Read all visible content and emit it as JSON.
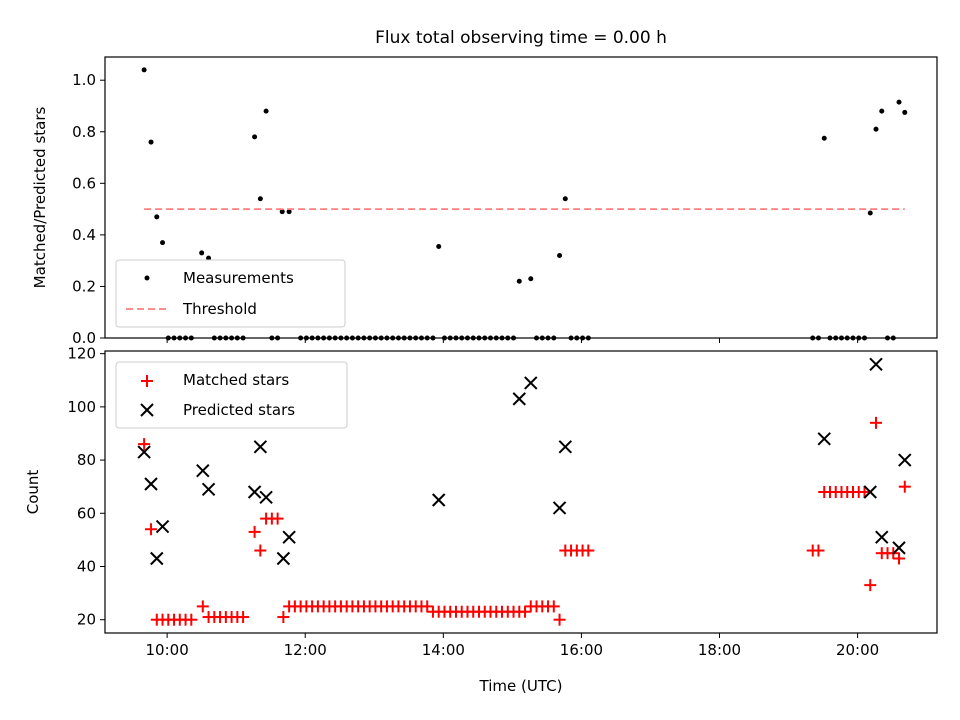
{
  "chart_data": [
    {
      "type": "scatter",
      "title": "Flux total observing time = 0.00 h",
      "xlabel": "",
      "ylabel": "Matched/Predicted stars",
      "xlim_hours": [
        9.1,
        21.15
      ],
      "ylim": [
        0,
        1.09
      ],
      "x_ticks": [
        "10:00",
        "12:00",
        "14:00",
        "16:00",
        "18:00",
        "20:00"
      ],
      "x_tick_hours": [
        10,
        12,
        14,
        16,
        18,
        20
      ],
      "y_ticks": [
        "0.0",
        "0.2",
        "0.4",
        "0.6",
        "0.8",
        "1.0"
      ],
      "y_tick_values": [
        0,
        0.2,
        0.4,
        0.6,
        0.8,
        1.0
      ],
      "grid": false,
      "legend_position": "lower-left",
      "series": [
        {
          "name": "Measurements",
          "marker": "dot",
          "color": "#000000",
          "points": [
            [
              "09:40",
              1.04
            ],
            [
              "09:46",
              0.76
            ],
            [
              "09:51",
              0.47
            ],
            [
              "09:56",
              0.37
            ],
            [
              "10:30",
              0.33
            ],
            [
              "10:36",
              0.31
            ],
            [
              "11:16",
              0.78
            ],
            [
              "11:21",
              0.54
            ],
            [
              "11:26",
              0.88
            ],
            [
              "11:40",
              0.49
            ],
            [
              "11:46",
              0.49
            ],
            [
              "13:56",
              0.355
            ],
            [
              "15:06",
              0.22
            ],
            [
              "15:16",
              0.23
            ],
            [
              "15:41",
              0.32
            ],
            [
              "15:46",
              0.54
            ],
            [
              "19:31",
              0.775
            ],
            [
              "20:11",
              0.485
            ],
            [
              "20:16",
              0.81
            ],
            [
              "20:21",
              0.88
            ],
            [
              "20:36",
              0.915
            ],
            [
              "20:41",
              0.875
            ]
          ],
          "zero_points": [
            "10:01",
            "10:06",
            "10:11",
            "10:16",
            "10:21",
            "10:41",
            "10:46",
            "10:51",
            "10:56",
            "11:01",
            "11:06",
            "11:31",
            "11:36",
            "11:56",
            "12:01",
            "12:06",
            "12:11",
            "12:16",
            "12:21",
            "12:26",
            "12:31",
            "12:36",
            "12:41",
            "12:46",
            "12:51",
            "12:56",
            "13:01",
            "13:06",
            "13:11",
            "13:16",
            "13:21",
            "13:26",
            "13:31",
            "13:36",
            "13:41",
            "13:46",
            "13:51",
            "14:01",
            "14:06",
            "14:11",
            "14:16",
            "14:21",
            "14:26",
            "14:31",
            "14:36",
            "14:41",
            "14:46",
            "14:51",
            "14:56",
            "15:01",
            "15:21",
            "15:26",
            "15:31",
            "15:36",
            "15:51",
            "15:56",
            "16:01",
            "16:06",
            "19:21",
            "19:26",
            "19:36",
            "19:41",
            "19:46",
            "19:51",
            "19:56",
            "20:01",
            "20:06",
            "20:26",
            "20:31"
          ]
        },
        {
          "name": "Threshold",
          "marker": "dashed-line",
          "color": "#ff7f7f",
          "y": 0.5,
          "x_range": [
            "09:40",
            "20:41"
          ]
        }
      ]
    },
    {
      "type": "scatter",
      "title": "",
      "xlabel": "Time (UTC)",
      "ylabel": "Count",
      "xlim_hours": [
        9.1,
        21.15
      ],
      "ylim": [
        15,
        121
      ],
      "x_ticks": [
        "10:00",
        "12:00",
        "14:00",
        "16:00",
        "18:00",
        "20:00"
      ],
      "x_tick_hours": [
        10,
        12,
        14,
        16,
        18,
        20
      ],
      "y_ticks": [
        "20",
        "40",
        "60",
        "80",
        "100",
        "120"
      ],
      "y_tick_values": [
        20,
        40,
        60,
        80,
        100,
        120
      ],
      "grid": false,
      "legend_position": "upper-left",
      "series": [
        {
          "name": "Matched stars",
          "marker": "plus",
          "color": "#ff0000",
          "points": [
            [
              "09:40",
              86
            ],
            [
              "09:46",
              54
            ],
            [
              "09:51",
              20
            ],
            [
              "09:56",
              20
            ],
            [
              "10:01",
              20
            ],
            [
              "10:06",
              20
            ],
            [
              "10:11",
              20
            ],
            [
              "10:16",
              20
            ],
            [
              "10:21",
              20
            ],
            [
              "10:31",
              25
            ],
            [
              "10:36",
              21
            ],
            [
              "10:41",
              21
            ],
            [
              "10:46",
              21
            ],
            [
              "10:51",
              21
            ],
            [
              "10:56",
              21
            ],
            [
              "11:01",
              21
            ],
            [
              "11:06",
              21
            ],
            [
              "11:16",
              53
            ],
            [
              "11:21",
              46
            ],
            [
              "11:26",
              58
            ],
            [
              "11:31",
              58
            ],
            [
              "11:36",
              58
            ],
            [
              "11:41",
              21
            ],
            [
              "11:46",
              25
            ],
            [
              "11:51",
              25
            ],
            [
              "11:56",
              25
            ],
            [
              "12:01",
              25
            ],
            [
              "12:06",
              25
            ],
            [
              "12:11",
              25
            ],
            [
              "12:16",
              25
            ],
            [
              "12:21",
              25
            ],
            [
              "12:26",
              25
            ],
            [
              "12:31",
              25
            ],
            [
              "12:36",
              25
            ],
            [
              "12:41",
              25
            ],
            [
              "12:46",
              25
            ],
            [
              "12:51",
              25
            ],
            [
              "12:56",
              25
            ],
            [
              "13:01",
              25
            ],
            [
              "13:06",
              25
            ],
            [
              "13:11",
              25
            ],
            [
              "13:16",
              25
            ],
            [
              "13:21",
              25
            ],
            [
              "13:26",
              25
            ],
            [
              "13:31",
              25
            ],
            [
              "13:36",
              25
            ],
            [
              "13:41",
              25
            ],
            [
              "13:46",
              25
            ],
            [
              "13:51",
              23
            ],
            [
              "13:56",
              23
            ],
            [
              "14:01",
              23
            ],
            [
              "14:06",
              23
            ],
            [
              "14:11",
              23
            ],
            [
              "14:16",
              23
            ],
            [
              "14:21",
              23
            ],
            [
              "14:26",
              23
            ],
            [
              "14:31",
              23
            ],
            [
              "14:36",
              23
            ],
            [
              "14:41",
              23
            ],
            [
              "14:46",
              23
            ],
            [
              "14:51",
              23
            ],
            [
              "14:56",
              23
            ],
            [
              "15:01",
              23
            ],
            [
              "15:06",
              23
            ],
            [
              "15:11",
              23
            ],
            [
              "15:16",
              25
            ],
            [
              "15:21",
              25
            ],
            [
              "15:26",
              25
            ],
            [
              "15:31",
              25
            ],
            [
              "15:36",
              25
            ],
            [
              "15:41",
              20
            ],
            [
              "15:46",
              46
            ],
            [
              "15:51",
              46
            ],
            [
              "15:56",
              46
            ],
            [
              "16:01",
              46
            ],
            [
              "16:06",
              46
            ],
            [
              "19:21",
              46
            ],
            [
              "19:26",
              46
            ],
            [
              "19:31",
              68
            ],
            [
              "19:36",
              68
            ],
            [
              "19:41",
              68
            ],
            [
              "19:46",
              68
            ],
            [
              "19:51",
              68
            ],
            [
              "19:56",
              68
            ],
            [
              "20:01",
              68
            ],
            [
              "20:06",
              68
            ],
            [
              "20:11",
              33
            ],
            [
              "20:16",
              94
            ],
            [
              "20:21",
              45
            ],
            [
              "20:26",
              45
            ],
            [
              "20:31",
              45
            ],
            [
              "20:36",
              43
            ],
            [
              "20:41",
              70
            ]
          ]
        },
        {
          "name": "Predicted stars",
          "marker": "x",
          "color": "#000000",
          "points": [
            [
              "09:40",
              83
            ],
            [
              "09:46",
              71
            ],
            [
              "09:51",
              43
            ],
            [
              "09:56",
              55
            ],
            [
              "10:31",
              76
            ],
            [
              "10:36",
              69
            ],
            [
              "11:16",
              68
            ],
            [
              "11:21",
              85
            ],
            [
              "11:26",
              66
            ],
            [
              "11:41",
              43
            ],
            [
              "11:46",
              51
            ],
            [
              "13:56",
              65
            ],
            [
              "15:06",
              103
            ],
            [
              "15:16",
              109
            ],
            [
              "15:41",
              62
            ],
            [
              "15:46",
              85
            ],
            [
              "19:31",
              88
            ],
            [
              "20:11",
              68
            ],
            [
              "20:16",
              116
            ],
            [
              "20:21",
              51
            ],
            [
              "20:36",
              47
            ],
            [
              "20:41",
              80
            ]
          ]
        }
      ]
    }
  ]
}
